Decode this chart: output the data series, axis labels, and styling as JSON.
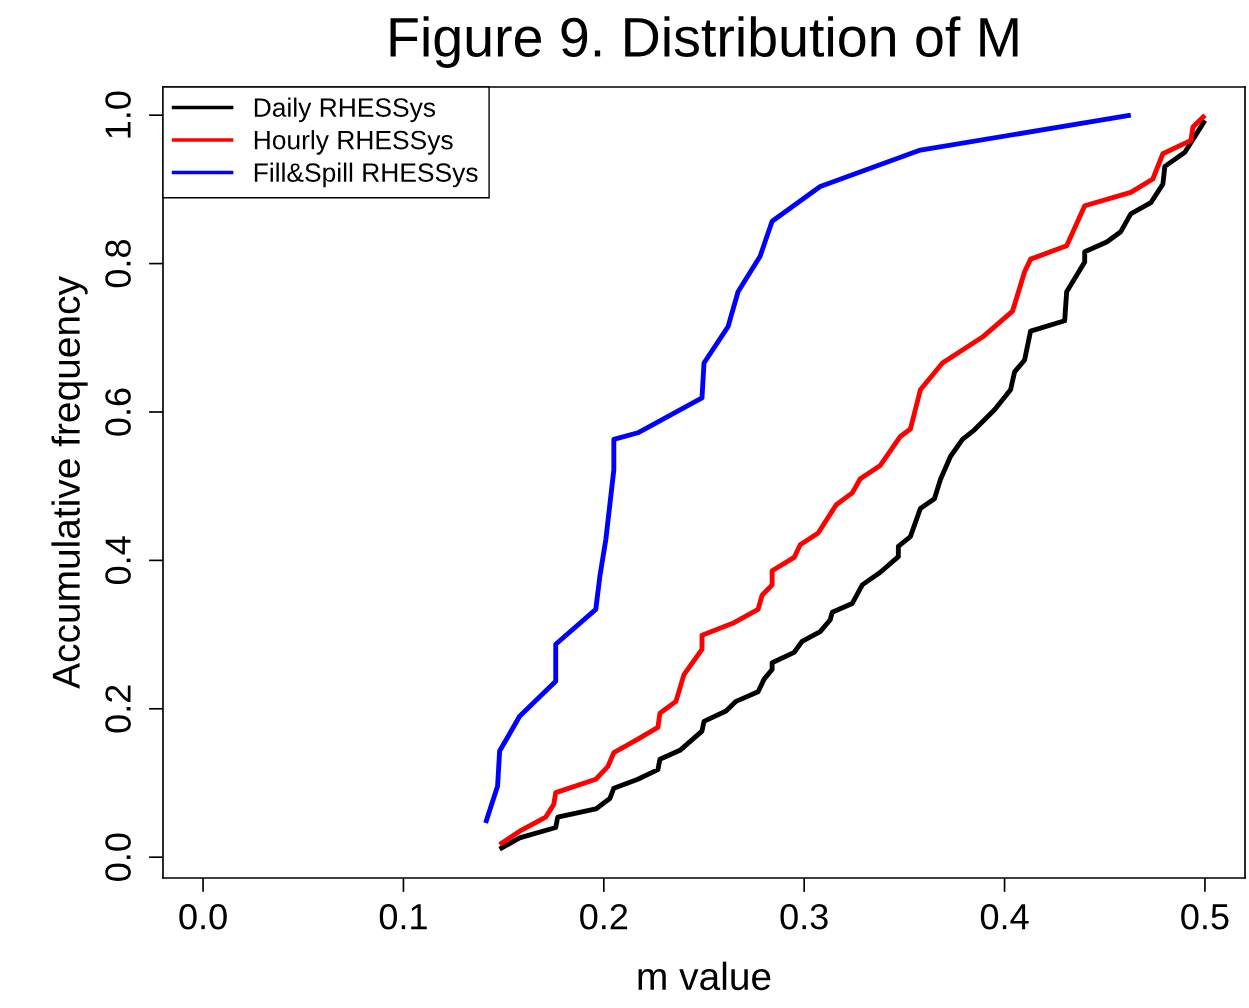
{
  "chart_data": {
    "type": "line",
    "title": "Figure 9. Distribution of M",
    "xlabel": "m value",
    "ylabel": "Accumulative frequency",
    "xlim": [
      -0.02,
      0.52
    ],
    "ylim": [
      -0.028,
      1.038
    ],
    "xticks": [
      {
        "value": 0.0,
        "label": "0.0"
      },
      0.1,
      0.2,
      0.3,
      0.4,
      0.5
    ],
    "yticks": [
      {
        "value": 0.0,
        "label": "0.0"
      },
      0.2,
      0.4,
      0.6,
      0.8,
      {
        "value": 1.0,
        "label": "1.0"
      }
    ],
    "grid": false,
    "legend": "top left",
    "line_style": "solid",
    "marker": "none",
    "series": [
      {
        "name": "Daily RHESSys",
        "color": "#000000",
        "x": [
          0.148,
          0.158,
          0.176,
          0.177,
          0.196,
          0.203,
          0.205,
          0.217,
          0.227,
          0.228,
          0.238,
          0.249,
          0.25,
          0.261,
          0.266,
          0.277,
          0.28,
          0.284,
          0.284,
          0.295,
          0.299,
          0.308,
          0.313,
          0.314,
          0.324,
          0.329,
          0.338,
          0.347,
          0.347,
          0.353,
          0.358,
          0.365,
          0.368,
          0.373,
          0.379,
          0.385,
          0.395,
          0.403,
          0.405,
          0.41,
          0.413,
          0.43,
          0.431,
          0.44,
          0.44,
          0.451,
          0.458,
          0.463,
          0.473,
          0.479,
          0.48,
          0.49,
          0.5
        ],
        "values": [
          0.011,
          0.026,
          0.04,
          0.054,
          0.065,
          0.079,
          0.093,
          0.105,
          0.118,
          0.132,
          0.144,
          0.17,
          0.183,
          0.197,
          0.21,
          0.223,
          0.24,
          0.253,
          0.262,
          0.276,
          0.291,
          0.304,
          0.32,
          0.33,
          0.342,
          0.367,
          0.384,
          0.405,
          0.419,
          0.432,
          0.47,
          0.483,
          0.509,
          0.54,
          0.563,
          0.576,
          0.603,
          0.63,
          0.654,
          0.67,
          0.709,
          0.723,
          0.762,
          0.802,
          0.816,
          0.829,
          0.843,
          0.867,
          0.882,
          0.907,
          0.931,
          0.95,
          0.993
        ]
      },
      {
        "name": "Hourly RHESSys",
        "color": "#ff0000",
        "x": [
          0.148,
          0.158,
          0.171,
          0.175,
          0.176,
          0.196,
          0.202,
          0.205,
          0.217,
          0.227,
          0.228,
          0.236,
          0.24,
          0.249,
          0.249,
          0.265,
          0.277,
          0.279,
          0.284,
          0.284,
          0.295,
          0.298,
          0.307,
          0.316,
          0.324,
          0.328,
          0.338,
          0.348,
          0.353,
          0.358,
          0.369,
          0.389,
          0.404,
          0.41,
          0.413,
          0.431,
          0.44,
          0.463,
          0.474,
          0.479,
          0.493,
          0.494,
          0.5
        ],
        "values": [
          0.017,
          0.035,
          0.054,
          0.071,
          0.087,
          0.105,
          0.122,
          0.141,
          0.159,
          0.175,
          0.194,
          0.21,
          0.246,
          0.28,
          0.299,
          0.316,
          0.334,
          0.353,
          0.367,
          0.386,
          0.404,
          0.421,
          0.437,
          0.475,
          0.491,
          0.51,
          0.528,
          0.567,
          0.577,
          0.63,
          0.666,
          0.701,
          0.736,
          0.789,
          0.806,
          0.824,
          0.878,
          0.896,
          0.914,
          0.948,
          0.966,
          0.984,
          1.0
        ]
      },
      {
        "name": "Fill&Spill RHESSys",
        "color": "#0000ff",
        "x": [
          0.141,
          0.147,
          0.148,
          0.158,
          0.176,
          0.176,
          0.196,
          0.198,
          0.201,
          0.203,
          0.205,
          0.205,
          0.217,
          0.249,
          0.25,
          0.262,
          0.267,
          0.278,
          0.284,
          0.308,
          0.358,
          0.463
        ],
        "values": [
          0.046,
          0.096,
          0.143,
          0.19,
          0.237,
          0.287,
          0.334,
          0.378,
          0.428,
          0.475,
          0.522,
          0.563,
          0.572,
          0.619,
          0.666,
          0.715,
          0.762,
          0.81,
          0.857,
          0.904,
          0.953,
          1.0
        ]
      }
    ]
  }
}
